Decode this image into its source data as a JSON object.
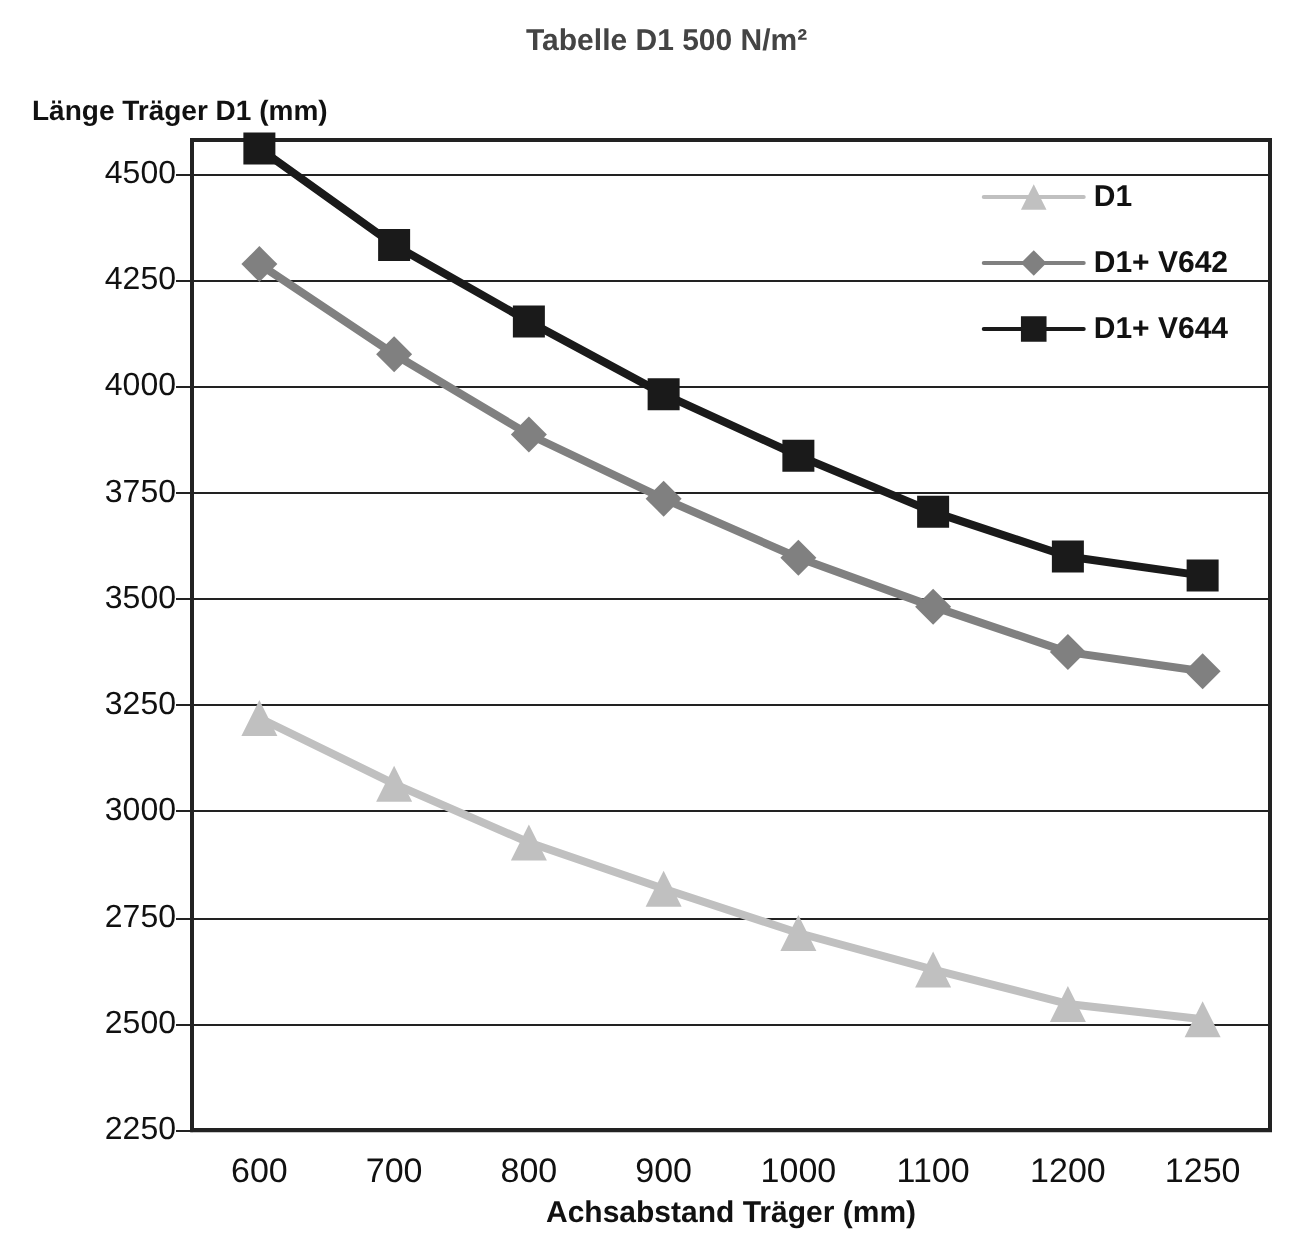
{
  "chart_data": {
    "type": "line",
    "title": "Tabelle D1 500 N/m²",
    "xlabel": "Achsabstand Träger (mm)",
    "ylabel": "Länge Träger D1 (mm)",
    "categories": [
      "600",
      "700",
      "800",
      "900",
      "1000",
      "1100",
      "1200",
      "1250"
    ],
    "series": [
      {
        "name": "D1",
        "color": "#c0c0c0",
        "marker": "triangle",
        "values": [
          3220,
          3065,
          2927,
          2818,
          2714,
          2628,
          2547,
          2511
        ]
      },
      {
        "name": "D1+ V642",
        "color": "#808080",
        "marker": "diamond",
        "values": [
          4288,
          4076,
          3887,
          3736,
          3597,
          3482,
          3375,
          3330
        ]
      },
      {
        "name": "D1+ V644",
        "color": "#1a1a1a",
        "marker": "square",
        "values": [
          4560,
          4333,
          4153,
          3982,
          3837,
          3705,
          3600,
          3555
        ]
      }
    ],
    "ylim": [
      2250,
      4580
    ],
    "yticks": [
      2250,
      2500,
      2750,
      3000,
      3250,
      3500,
      3750,
      4000,
      4250,
      4500
    ],
    "grid": "y",
    "legend": "top right",
    "line_style": "solid"
  }
}
